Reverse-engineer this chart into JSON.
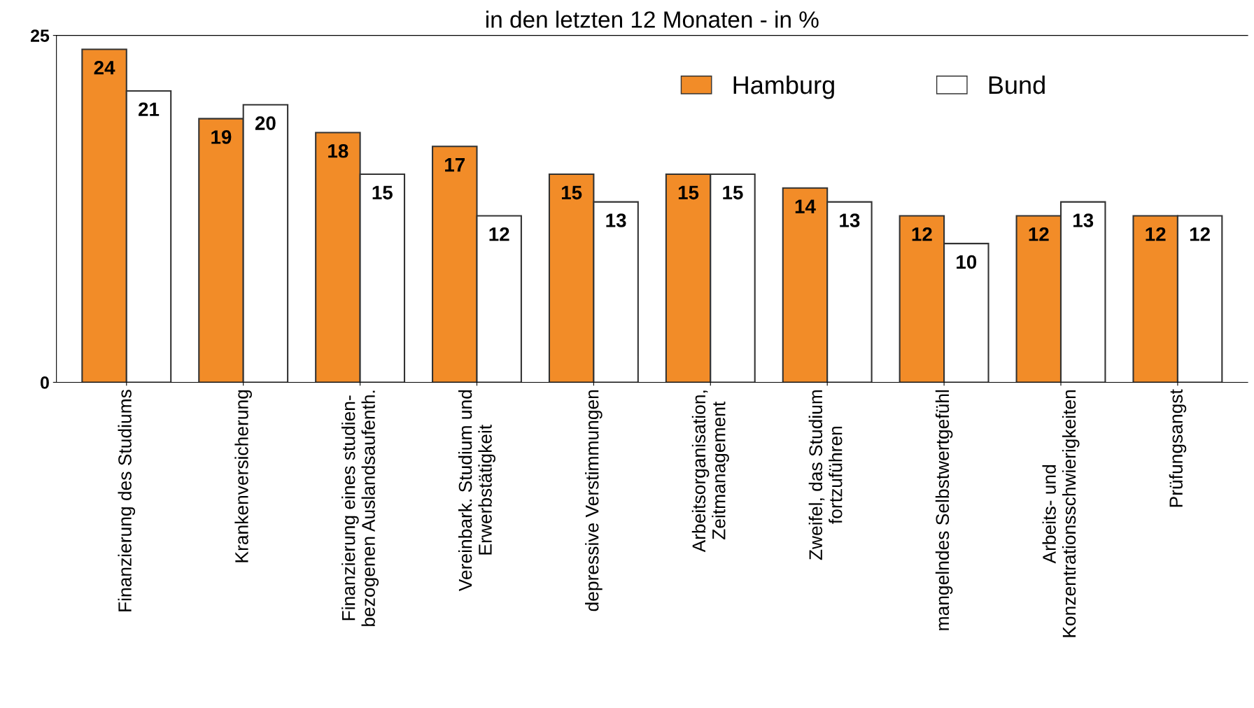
{
  "chart_data": {
    "type": "bar",
    "title": "in den letzten 12 Monaten - in %",
    "categories": [
      "Finanzierung des Studiums",
      "Krankenversicherung",
      "Finanzierung eines studien-\nbezogenen Auslandsaufenth.",
      "Vereinbark. Studium und\nErwerbstätigkeit",
      "depressive Verstimmungen",
      "Arbeitsorganisation,\nZeitmanagement",
      "Zweifel, das Studium\nfortzuführen",
      "mangelndes Selbstwertgefühl",
      "Arbeits- und\nKonzentrationsschwierigkeiten",
      "Prüfungsangst"
    ],
    "series": [
      {
        "name": "Hamburg",
        "color": "#f28c28",
        "values": [
          24,
          19,
          18,
          17,
          15,
          15,
          14,
          12,
          12,
          12
        ]
      },
      {
        "name": "Bund",
        "color": "#ffffff",
        "values": [
          21,
          20,
          15,
          12,
          13,
          15,
          13,
          10,
          13,
          12
        ]
      }
    ],
    "ylim": [
      0,
      25
    ],
    "yticks": [
      0,
      25
    ],
    "data_labels": true,
    "legend": "top right",
    "grid": false
  }
}
